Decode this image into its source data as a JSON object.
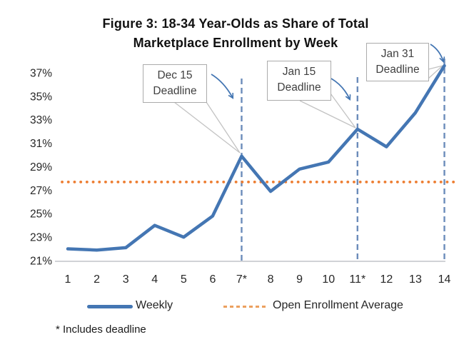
{
  "figure": {
    "title_lines": [
      "Figure 3: 18-34 Year-Olds as Share of Total",
      "Marketplace Enrollment by Week"
    ],
    "footnote": "* Includes deadline"
  },
  "legend": {
    "weekly_label": "Weekly",
    "average_label": "Open Enrollment Average"
  },
  "chart_data": {
    "type": "line",
    "title": "Figure 3: 18-34 Year-Olds as Share of Total Marketplace Enrollment by Week",
    "categories": [
      "1",
      "2",
      "3",
      "4",
      "5",
      "6",
      "7*",
      "8",
      "9",
      "10",
      "11*",
      "12",
      "13",
      "14"
    ],
    "ylim": [
      21,
      37
    ],
    "ytick_labels": [
      "37%",
      "35%",
      "33%",
      "31%",
      "29%",
      "27%",
      "25%",
      "23%",
      "21%"
    ],
    "ytick_values": [
      37,
      35,
      33,
      31,
      29,
      27,
      25,
      23,
      21
    ],
    "grid": false,
    "legend_position": "bottom",
    "series": [
      {
        "name": "Weekly",
        "values": [
          22.0,
          21.9,
          22.1,
          24.0,
          23.0,
          24.8,
          29.9,
          26.9,
          28.8,
          29.4,
          32.2,
          30.7,
          33.6,
          37.6
        ]
      }
    ],
    "average_line": {
      "name": "Open Enrollment Average",
      "value": 27.7,
      "style": "dotted"
    },
    "annotations": [
      {
        "week": 7,
        "label_lines": [
          "Dec 15",
          "Deadline"
        ]
      },
      {
        "week": 11,
        "label_lines": [
          "Jan 15",
          "Deadline"
        ]
      },
      {
        "week": 14,
        "label_lines": [
          "Jan 31",
          "Deadline"
        ]
      }
    ],
    "footnote": "* Includes deadline",
    "colors": {
      "weekly": "#4476b3",
      "average": "#ed7d31",
      "deadline_line": "#6b8cba",
      "axis": "#c0c4c9",
      "legend_average_swatch": "#eca05f"
    }
  }
}
